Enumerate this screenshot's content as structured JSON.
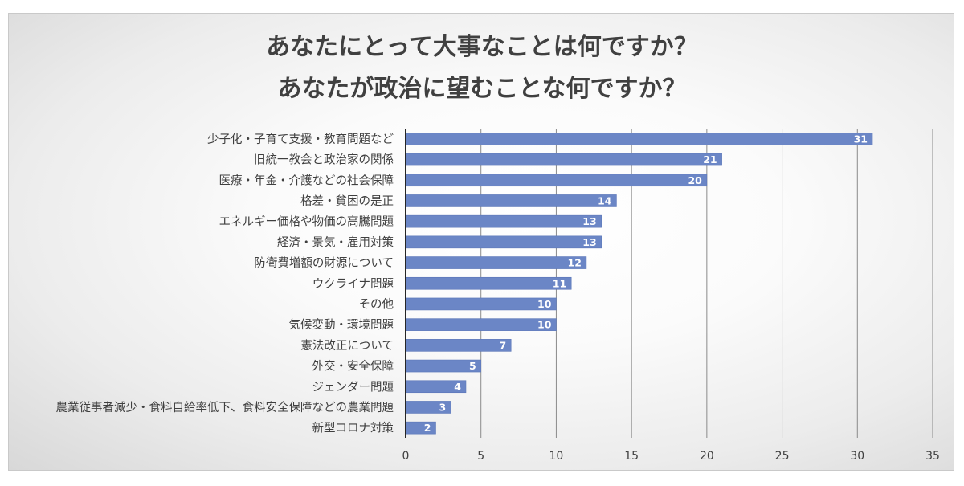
{
  "chart_data": {
    "type": "bar",
    "orientation": "horizontal",
    "title": [
      "あなたにとって大事なことは何ですか？",
      "あなたが政治に望むことな何ですか？"
    ],
    "categories": [
      "少子化・子育て支援・教育問題など",
      "旧統一教会と政治家の関係",
      "医療・年金・介護などの社会保障",
      "格差・貧困の是正",
      "エネルギー価格や物価の高騰問題",
      "経済・景気・雇用対策",
      "防衛費増額の財源について",
      "ウクライナ問題",
      "その他",
      "気候変動・環境問題",
      "憲法改正について",
      "外交・安全保障",
      "ジェンダー問題",
      "農業従事者減少・食料自給率低下、食料安全保障などの農業問題",
      "新型コロナ対策"
    ],
    "values": [
      31,
      21,
      20,
      14,
      13,
      13,
      12,
      11,
      10,
      10,
      7,
      5,
      4,
      3,
      2
    ],
    "xlim": [
      0,
      35
    ],
    "xticks": [
      0,
      5,
      10,
      15,
      20,
      25,
      30,
      35
    ],
    "grid": true,
    "data_labels": true,
    "legend": false,
    "xlabel": "",
    "ylabel": "",
    "colors": {
      "bar": "#6b86c6",
      "bar_edge": "#5a76b8",
      "data_label_text": "#ffffff",
      "axis_text": "#404040",
      "title_text": "#404040"
    }
  }
}
